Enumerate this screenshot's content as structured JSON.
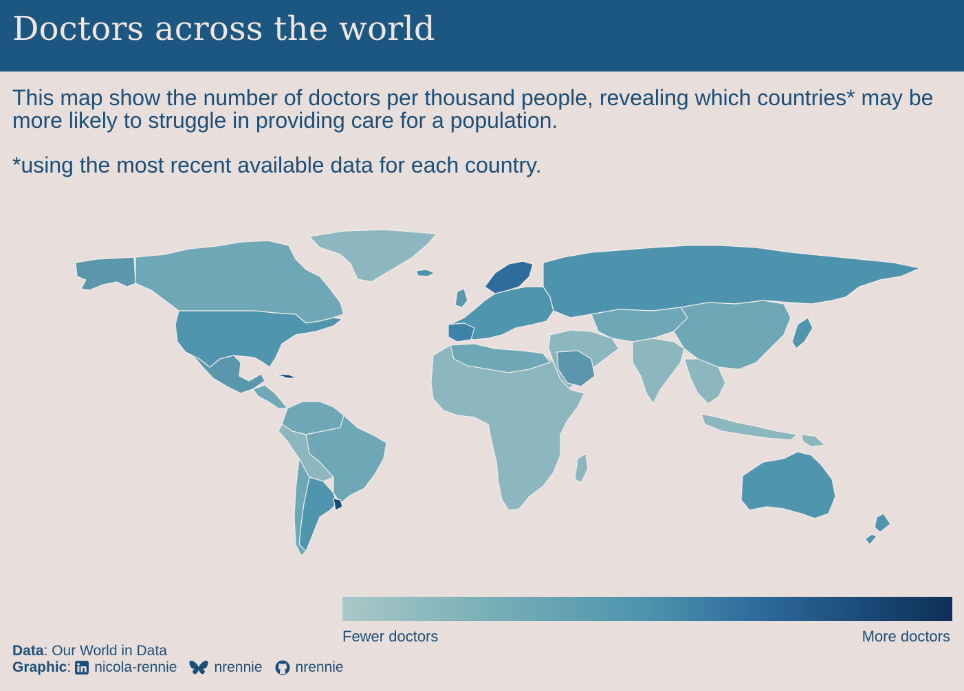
{
  "title": "Doctors across the world",
  "subtitle": {
    "line1": "This map show the number of doctors per thousand people, revealing which countries* may be more likely to struggle in providing care for a population.",
    "note": "*using the most recent available data for each country."
  },
  "legend": {
    "low_label": "Fewer doctors",
    "high_label": "More doctors",
    "colors": [
      "#a9c8c9",
      "#7cb1b8",
      "#4d93ad",
      "#2f6b9c",
      "#1a4b78",
      "#0e2f56"
    ]
  },
  "caption": {
    "data_label": "Data",
    "data_value": ": Our World in Data",
    "graphic_label": "Graphic",
    "graphic_sep": ":",
    "linkedin": "nicola-rennie",
    "bluesky": "nrennie",
    "github": "nrennie"
  },
  "colors": {
    "header_bg": "#1b5780",
    "background": "#e8dfdc",
    "text": "#1c4e77",
    "country_border": "#f2ecea"
  },
  "icons": [
    "linkedin-icon",
    "bluesky-icon",
    "github-icon"
  ]
}
